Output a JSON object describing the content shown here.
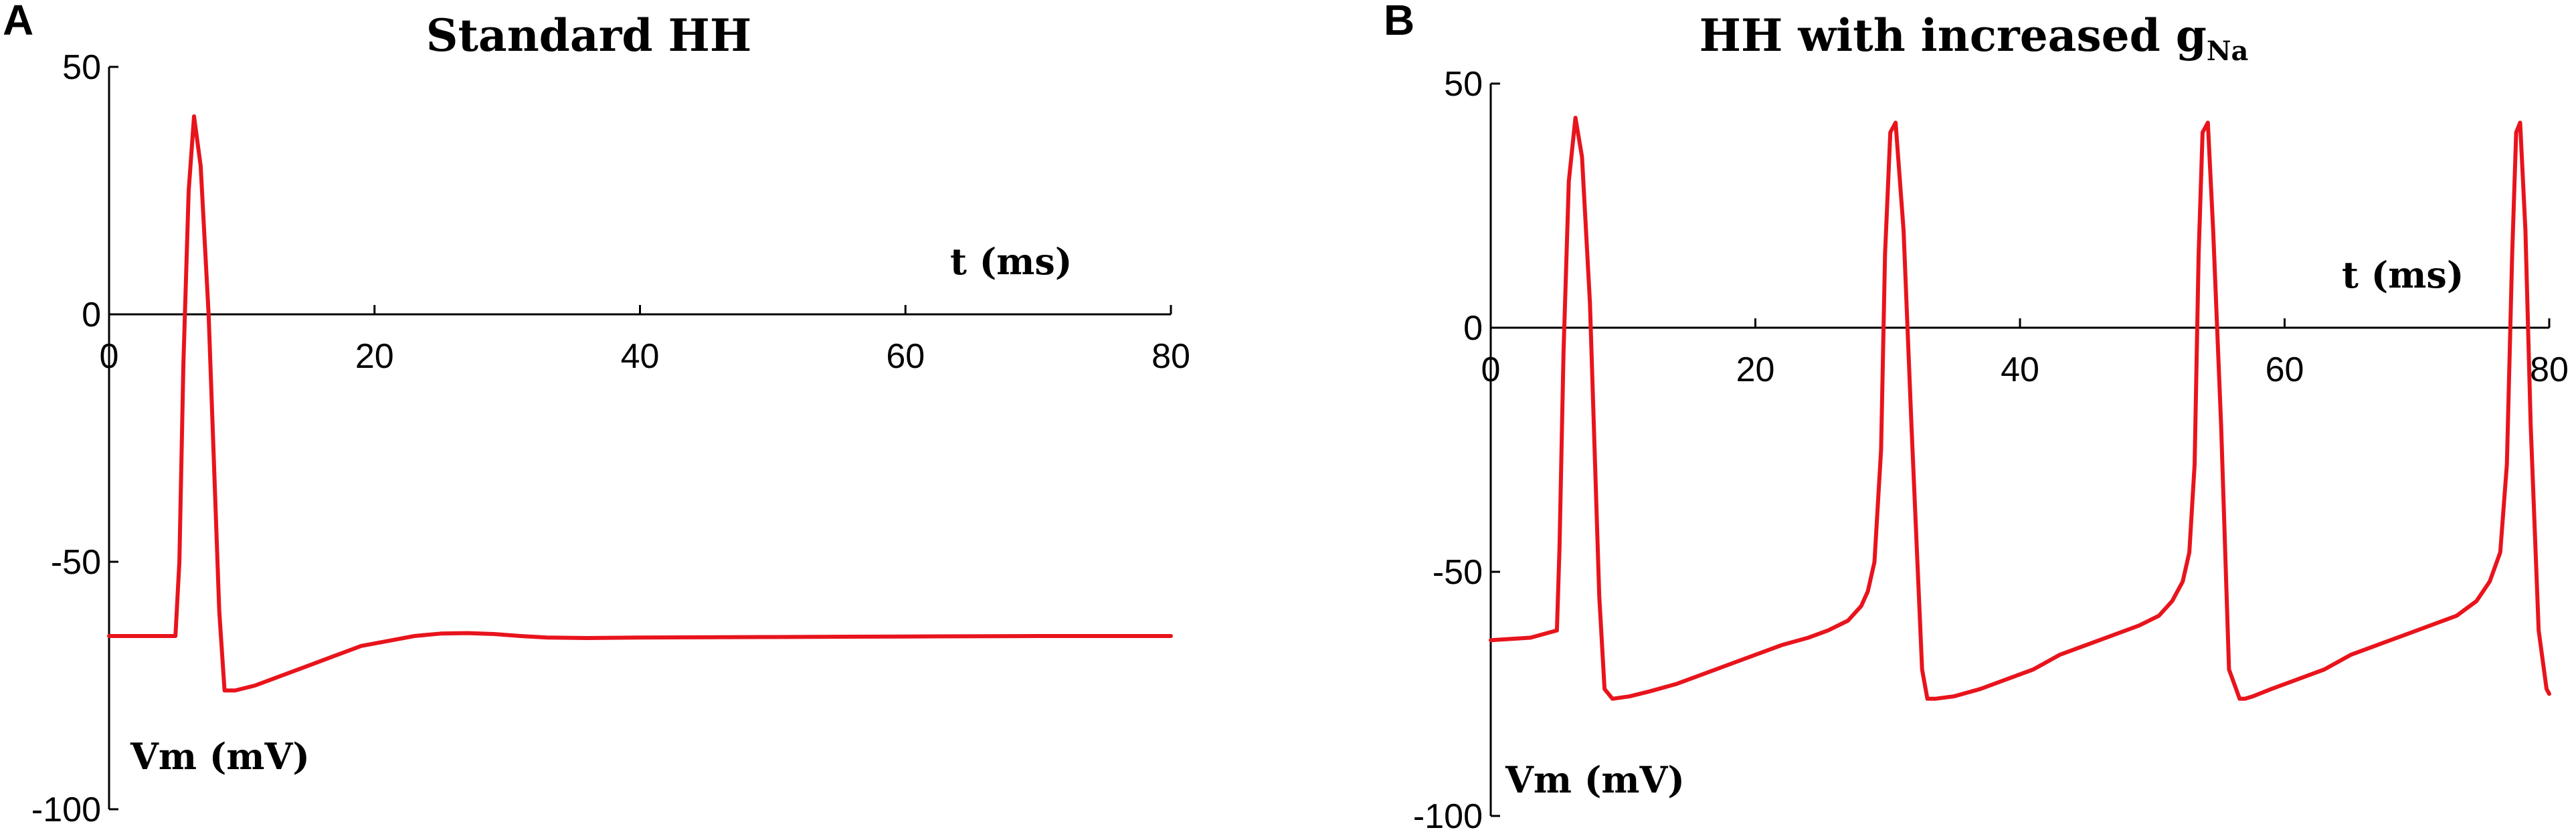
{
  "chart_data": [
    {
      "panel_label": "A",
      "type": "line",
      "title": "Standard HH",
      "title_sub": "",
      "xlabel": "t (ms)",
      "ylabel": "Vm (mV)",
      "xlim": [
        0,
        80
      ],
      "ylim": [
        -100,
        50
      ],
      "xticks": [
        0,
        20,
        40,
        60,
        80
      ],
      "yticks": [
        50,
        0,
        -50,
        -100
      ],
      "grid": false,
      "color": "#e8141c",
      "series": [
        {
          "x": [
            0,
            3,
            5,
            5.3,
            5.6,
            6.0,
            6.4,
            6.9,
            7.5,
            8.3,
            8.7,
            9.5,
            11,
            13,
            15,
            17,
            19,
            21,
            23,
            25,
            27,
            29,
            31,
            33,
            36,
            40,
            50,
            60,
            70,
            80
          ],
          "y": [
            -65,
            -65,
            -65,
            -50,
            -10,
            25,
            40,
            30,
            0,
            -60,
            -76,
            -76,
            -75,
            -73,
            -71,
            -69,
            -67,
            -66,
            -65,
            -64.5,
            -64.4,
            -64.6,
            -65,
            -65.3,
            -65.4,
            -65.3,
            -65.2,
            -65.1,
            -65,
            -65
          ]
        }
      ]
    },
    {
      "panel_label": "B",
      "type": "line",
      "title": "HH with increased g",
      "title_sub": "Na",
      "xlabel": "t (ms)",
      "ylabel": "Vm (mV)",
      "xlim": [
        0,
        80
      ],
      "ylim": [
        -100,
        50
      ],
      "xticks": [
        0,
        20,
        40,
        60,
        80
      ],
      "yticks": [
        50,
        0,
        -50,
        -100
      ],
      "grid": false,
      "color": "#e8141c",
      "series": [
        {
          "x": [
            0,
            3,
            5,
            5.2,
            5.5,
            5.9,
            6.4,
            6.9,
            7.5,
            8.2,
            8.6,
            9.2,
            10.5,
            12,
            14,
            16,
            18,
            20,
            22,
            24,
            25.5,
            27,
            28,
            28.5,
            29,
            29.5,
            29.8,
            30.2,
            30.6,
            31.2,
            31.8,
            32.6,
            33.0,
            33.6,
            35,
            37,
            39,
            41,
            43,
            45,
            47,
            49,
            50.5,
            51.5,
            52.3,
            52.8,
            53.2,
            53.5,
            53.8,
            54.2,
            54.6,
            55.2,
            55.8,
            56.6,
            57.0,
            57.6,
            59,
            61,
            63,
            65,
            67,
            69,
            71,
            73,
            74.5,
            75.5,
            76.3,
            76.8,
            77.2,
            77.5,
            77.8,
            78.2,
            78.6,
            79.2,
            79.8,
            80
          ],
          "y": [
            -64,
            -63.5,
            -62,
            -45,
            -5,
            30,
            43,
            35,
            5,
            -55,
            -74,
            -76,
            -75.5,
            -74.5,
            -73,
            -71,
            -69,
            -67,
            -65,
            -63.5,
            -62,
            -60,
            -57,
            -54,
            -48,
            -25,
            15,
            40,
            42,
            20,
            -20,
            -70,
            -76,
            -76,
            -75.5,
            -74,
            -72,
            -70,
            -67,
            -65,
            -63,
            -61,
            -59,
            -56,
            -52,
            -46,
            -28,
            15,
            40,
            42,
            20,
            -20,
            -70,
            -76,
            -76,
            -75.5,
            -74,
            -72,
            -70,
            -67,
            -65,
            -63,
            -61,
            -59,
            -56,
            -52,
            -46,
            -28,
            15,
            40,
            42,
            20,
            -20,
            -62,
            -74,
            -75
          ]
        }
      ]
    }
  ]
}
